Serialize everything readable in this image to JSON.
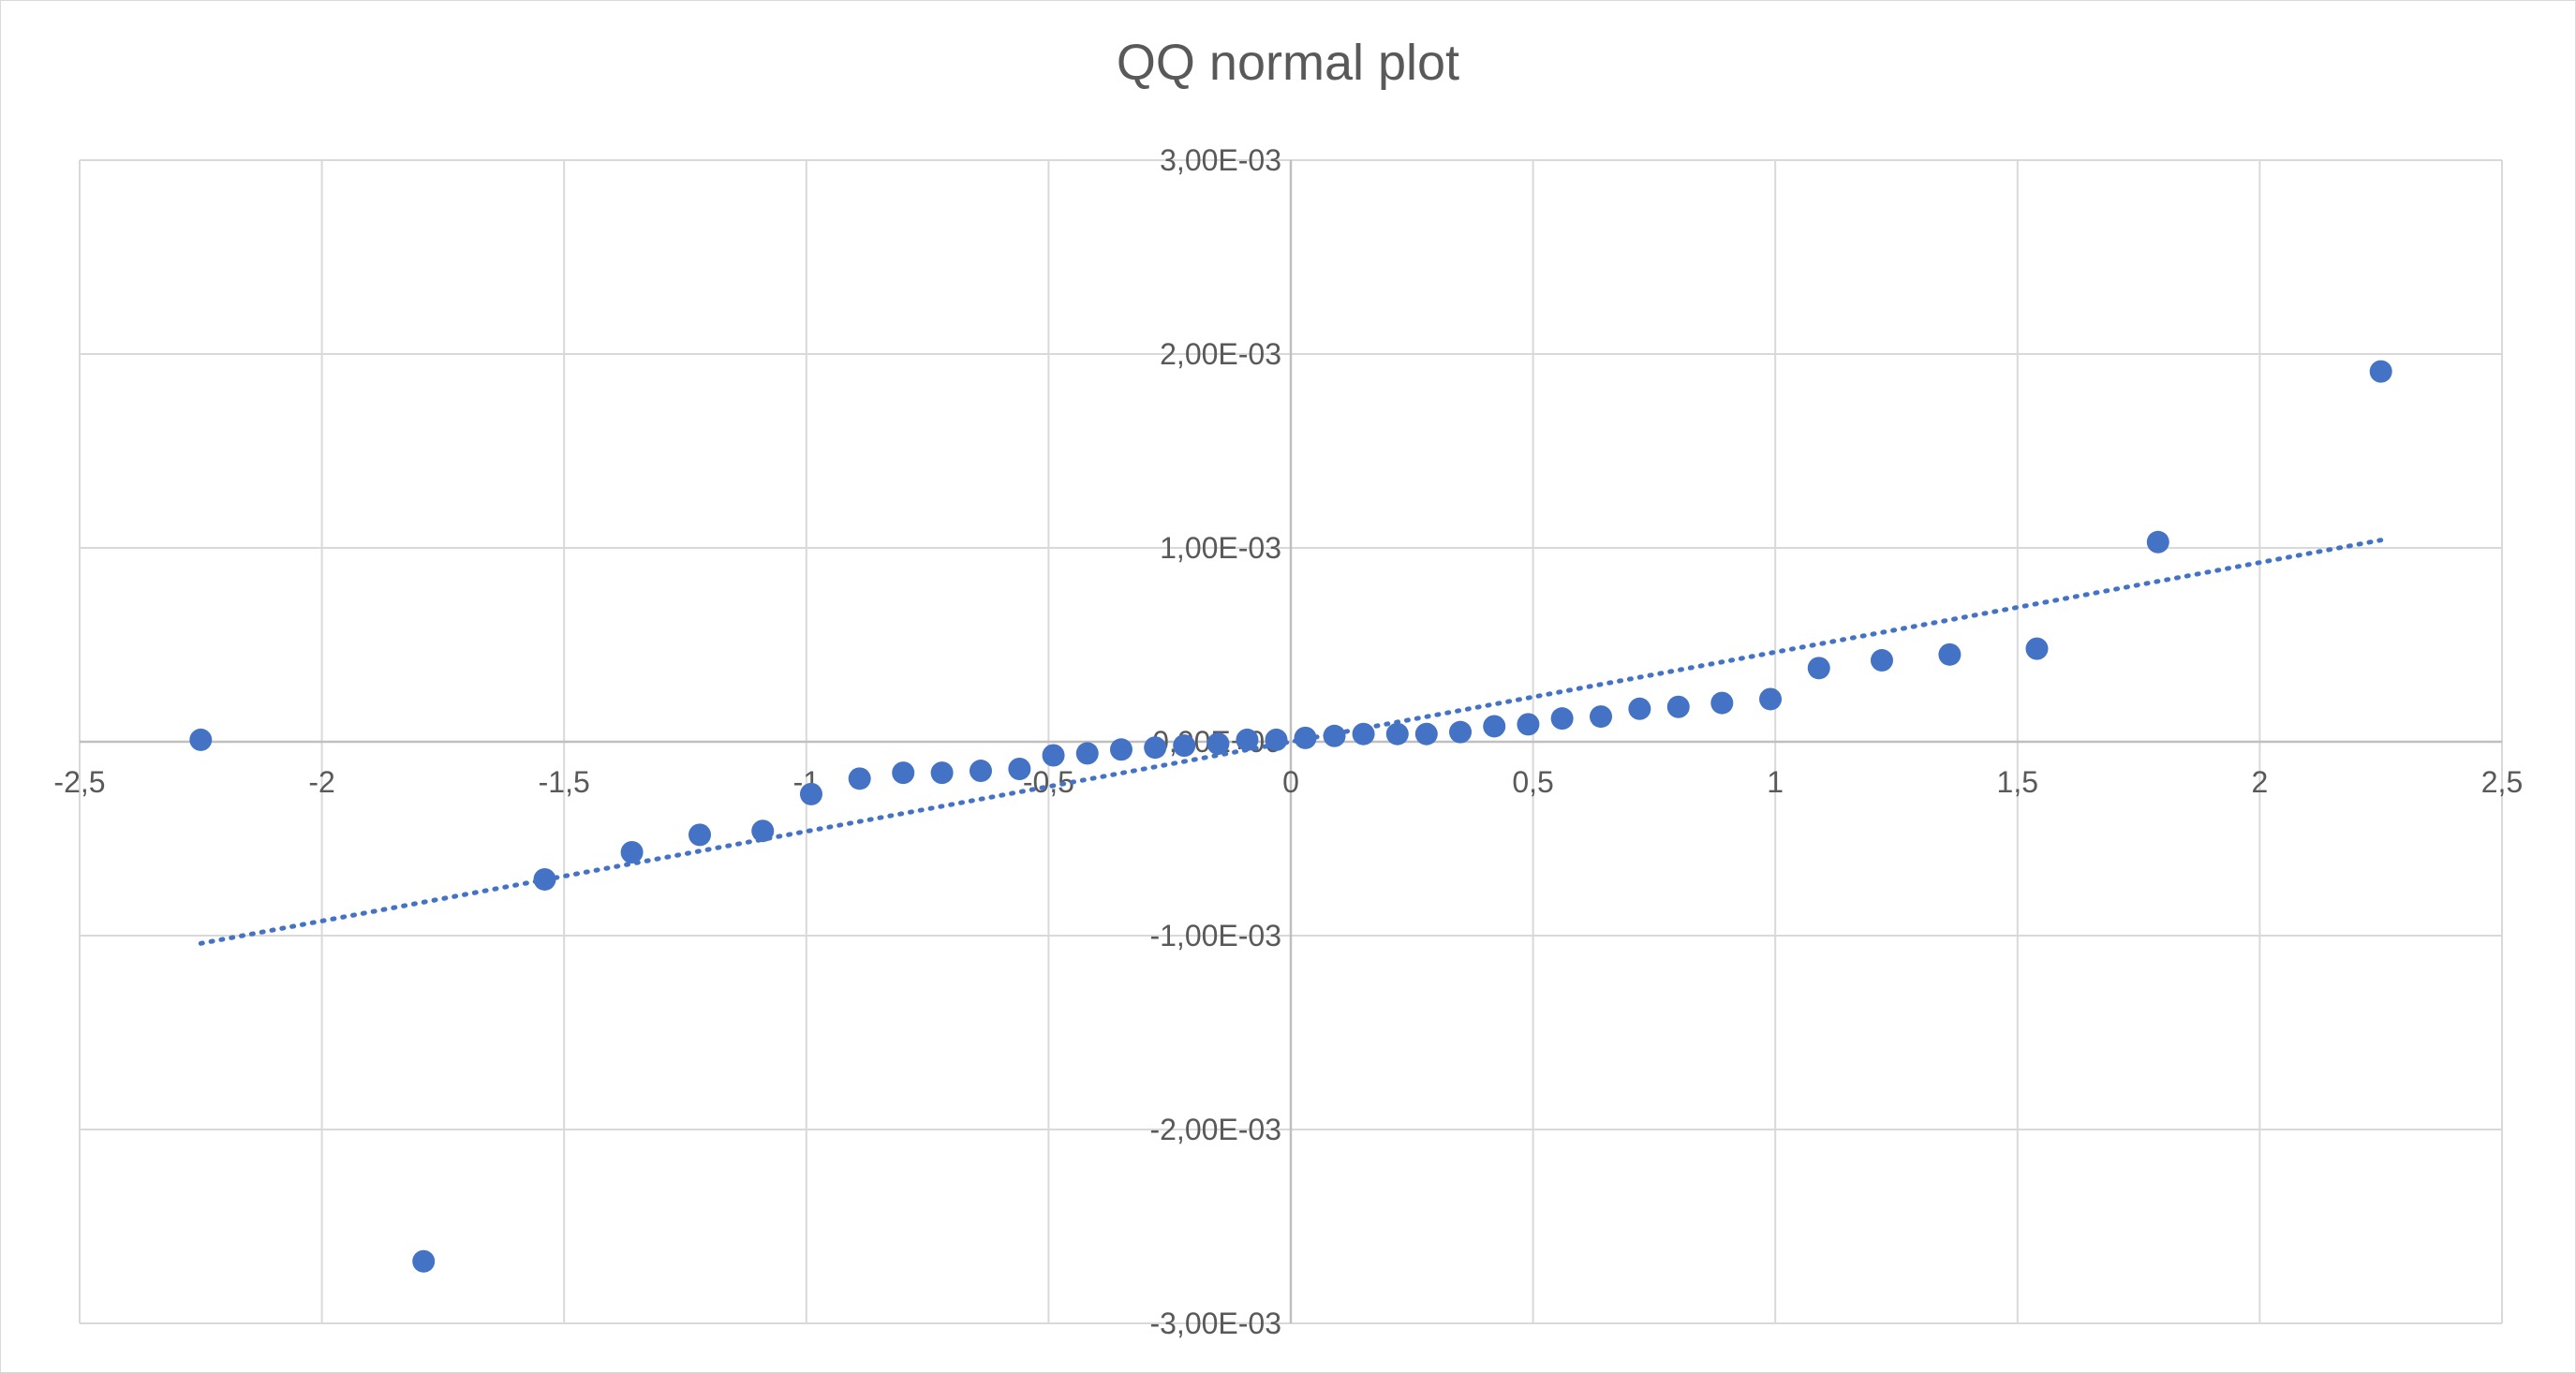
{
  "chart_data": {
    "type": "scatter",
    "title": "QQ normal plot",
    "xlabel": "",
    "ylabel": "",
    "xlim": [
      -2.5,
      2.5
    ],
    "ylim": [
      -0.003,
      0.003
    ],
    "x_ticks": [
      -2.5,
      -2,
      -1.5,
      -1,
      -0.5,
      0,
      0.5,
      1,
      1.5,
      2,
      2.5
    ],
    "x_tick_labels": [
      "-2,5",
      "-2",
      "-1,5",
      "-1",
      "-0,5",
      "0",
      "0,5",
      "1",
      "1,5",
      "2",
      "2,5"
    ],
    "y_ticks": [
      -0.003,
      -0.002,
      -0.001,
      0,
      0.001,
      0.002,
      0.003
    ],
    "y_tick_labels": [
      "-3,00E-03",
      "-2,00E-03",
      "-1,00E-03",
      "0,00E+00",
      "1,00E-03",
      "2,00E-03",
      "3,00E-03"
    ],
    "grid": true,
    "legend": "none",
    "marker_color": "#4472c4",
    "trendline": {
      "type": "linear",
      "style": "dotted",
      "color": "#4472c4",
      "x": [
        -2.25,
        2.25
      ],
      "y": [
        -0.00104,
        0.00104
      ]
    },
    "series": [
      {
        "x": [
          -2.25,
          -1.79,
          -1.54,
          -1.36,
          -1.22,
          -1.09,
          -0.99,
          -0.89,
          -0.8,
          -0.72,
          -0.64,
          -0.56,
          -0.49,
          -0.42,
          -0.35,
          -0.28,
          -0.22,
          -0.15,
          -0.09,
          -0.03,
          0.03,
          0.09,
          0.15,
          0.22,
          0.28,
          0.35,
          0.42,
          0.49,
          0.56,
          0.64,
          0.72,
          0.8,
          0.89,
          0.99,
          1.09,
          1.22,
          1.36,
          1.54,
          1.79,
          2.25
        ],
        "y": [
          1e-05,
          -0.00268,
          -0.00071,
          -0.00057,
          -0.00048,
          -0.00046,
          -0.00027,
          -0.00019,
          -0.00016,
          -0.00016,
          -0.00015,
          -0.00014,
          -7e-05,
          -6e-05,
          -4e-05,
          -3e-05,
          -2e-05,
          -1e-05,
          1e-05,
          1e-05,
          2e-05,
          3e-05,
          4e-05,
          4e-05,
          4e-05,
          5e-05,
          8e-05,
          9e-05,
          0.00012,
          0.00013,
          0.00017,
          0.00018,
          0.0002,
          0.00022,
          0.00038,
          0.00042,
          0.00045,
          0.00048,
          0.00103,
          0.00191
        ]
      }
    ]
  }
}
